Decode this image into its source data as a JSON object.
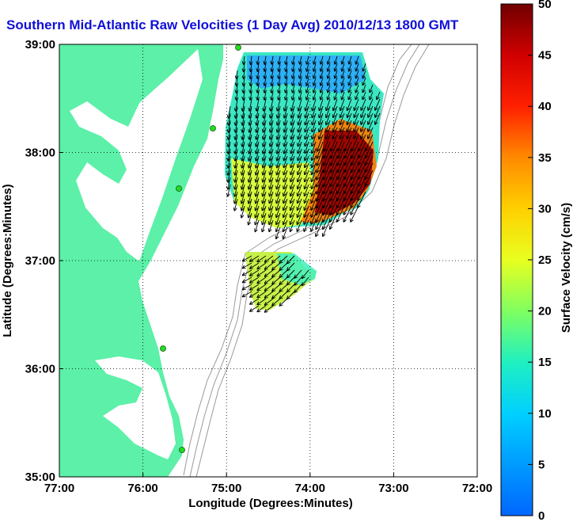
{
  "title": "Southern Mid-Atlantic Raw Velocities (1 Day Avg) 2010/12/13 1800 GMT",
  "xaxis": {
    "label": "Longitude (Degrees:Minutes)",
    "ticks": [
      "77:00",
      "76:00",
      "75:00",
      "74:00",
      "73:00",
      "72:00"
    ]
  },
  "yaxis": {
    "label": "Latitude (Degrees:Minutes)",
    "ticks": [
      "39:00",
      "38:00",
      "37:00",
      "36:00",
      "35:00"
    ]
  },
  "colorbar": {
    "label": "Surface Velocity (cm/s)",
    "ticks": [
      "50",
      "45",
      "40",
      "35",
      "30",
      "25",
      "20",
      "15",
      "10",
      "5",
      "0"
    ],
    "min": 0,
    "max": 50
  },
  "colors": {
    "land": "#5cf0a8",
    "title": "#1010d8",
    "stations": "#22dd22"
  },
  "map": {
    "lon_range": [
      -77,
      -72
    ],
    "lat_range": [
      35,
      39
    ],
    "grid": true
  }
}
